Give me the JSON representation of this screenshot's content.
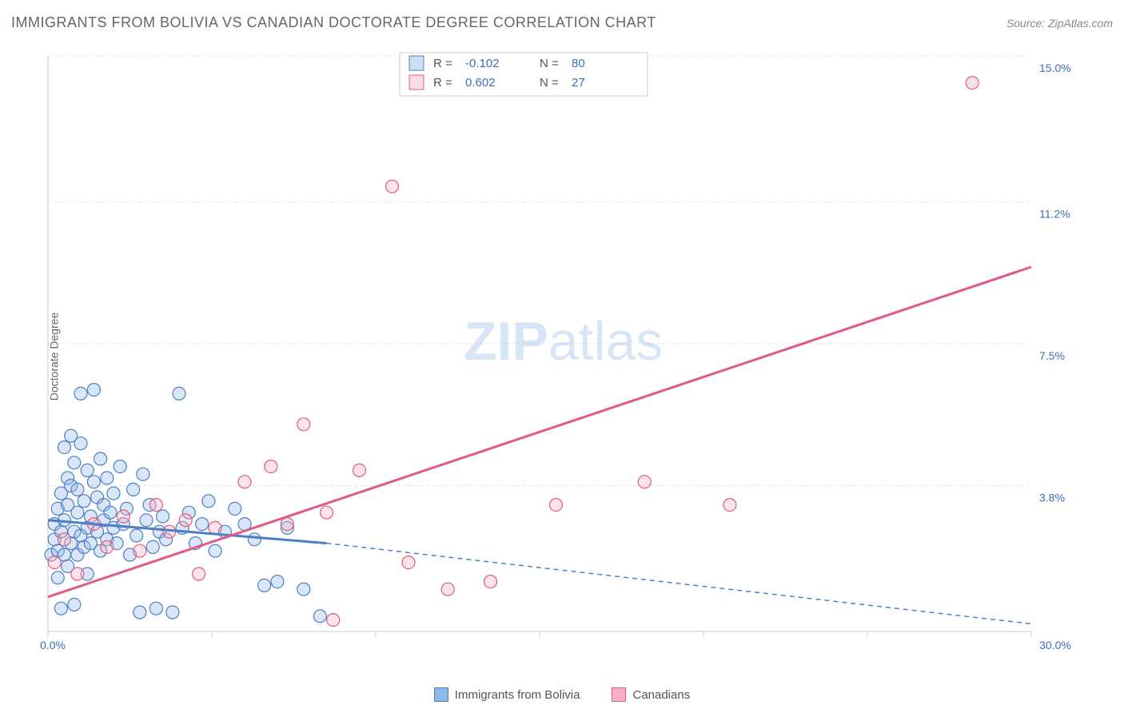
{
  "title": "IMMIGRANTS FROM BOLIVIA VS CANADIAN DOCTORATE DEGREE CORRELATION CHART",
  "source_label": "Source: ZipAtlas.com",
  "y_axis_label": "Doctorate Degree",
  "watermark": {
    "bold": "ZIP",
    "rest": "atlas"
  },
  "chart": {
    "type": "scatter",
    "background_color": "#ffffff",
    "grid_color": "#e0e0e0",
    "axis_color": "#cccccc",
    "tick_label_color": "#3b6fb6",
    "xlim": [
      0,
      30
    ],
    "ylim": [
      0,
      15
    ],
    "y_ticks": [
      3.8,
      7.5,
      11.2,
      15.0
    ],
    "y_tick_labels": [
      "3.8%",
      "7.5%",
      "11.2%",
      "15.0%"
    ],
    "x_min_label": "0.0%",
    "x_max_label": "30.0%",
    "x_tick_positions": [
      0,
      5,
      10,
      15,
      20,
      25,
      30
    ],
    "marker_radius": 8,
    "marker_stroke_width": 1.2,
    "marker_fill_opacity": 0.35,
    "trend_solid_width": 3,
    "trend_dash_width": 1.5,
    "trend_dash_pattern": "6 5"
  },
  "series": {
    "a": {
      "label": "Immigrants from Bolivia",
      "fill": "#8fb8e8",
      "stroke": "#4d7fc7",
      "R": "-0.102",
      "N": "80",
      "trend_solid": {
        "x0": 0.0,
        "y0": 2.9,
        "x1": 8.5,
        "y1": 2.3
      },
      "trend_dash": {
        "x0": 8.5,
        "y0": 2.3,
        "x1": 30.0,
        "y1": 0.2
      },
      "points": [
        [
          0.1,
          2.0
        ],
        [
          0.2,
          2.4
        ],
        [
          0.2,
          2.8
        ],
        [
          0.3,
          1.4
        ],
        [
          0.3,
          2.1
        ],
        [
          0.3,
          3.2
        ],
        [
          0.4,
          0.6
        ],
        [
          0.4,
          2.6
        ],
        [
          0.4,
          3.6
        ],
        [
          0.5,
          4.8
        ],
        [
          0.5,
          2.0
        ],
        [
          0.5,
          2.9
        ],
        [
          0.6,
          4.0
        ],
        [
          0.6,
          3.3
        ],
        [
          0.6,
          1.7
        ],
        [
          0.7,
          2.3
        ],
        [
          0.7,
          3.8
        ],
        [
          0.7,
          5.1
        ],
        [
          0.8,
          2.6
        ],
        [
          0.8,
          0.7
        ],
        [
          0.8,
          4.4
        ],
        [
          0.9,
          3.1
        ],
        [
          0.9,
          2.0
        ],
        [
          0.9,
          3.7
        ],
        [
          1.0,
          2.5
        ],
        [
          1.0,
          6.2
        ],
        [
          1.0,
          4.9
        ],
        [
          1.1,
          2.2
        ],
        [
          1.1,
          3.4
        ],
        [
          1.2,
          2.7
        ],
        [
          1.2,
          1.5
        ],
        [
          1.2,
          4.2
        ],
        [
          1.3,
          3.0
        ],
        [
          1.3,
          2.3
        ],
        [
          1.4,
          6.3
        ],
        [
          1.4,
          3.9
        ],
        [
          1.5,
          2.6
        ],
        [
          1.5,
          3.5
        ],
        [
          1.6,
          2.1
        ],
        [
          1.6,
          4.5
        ],
        [
          1.7,
          2.9
        ],
        [
          1.7,
          3.3
        ],
        [
          1.8,
          2.4
        ],
        [
          1.8,
          4.0
        ],
        [
          1.9,
          3.1
        ],
        [
          2.0,
          2.7
        ],
        [
          2.0,
          3.6
        ],
        [
          2.1,
          2.3
        ],
        [
          2.2,
          4.3
        ],
        [
          2.3,
          2.8
        ],
        [
          2.4,
          3.2
        ],
        [
          2.5,
          2.0
        ],
        [
          2.6,
          3.7
        ],
        [
          2.7,
          2.5
        ],
        [
          2.8,
          0.5
        ],
        [
          2.9,
          4.1
        ],
        [
          3.0,
          2.9
        ],
        [
          3.1,
          3.3
        ],
        [
          3.2,
          2.2
        ],
        [
          3.3,
          0.6
        ],
        [
          3.4,
          2.6
        ],
        [
          3.5,
          3.0
        ],
        [
          3.6,
          2.4
        ],
        [
          3.8,
          0.5
        ],
        [
          4.0,
          6.2
        ],
        [
          4.1,
          2.7
        ],
        [
          4.3,
          3.1
        ],
        [
          4.5,
          2.3
        ],
        [
          4.7,
          2.8
        ],
        [
          4.9,
          3.4
        ],
        [
          5.1,
          2.1
        ],
        [
          5.4,
          2.6
        ],
        [
          5.7,
          3.2
        ],
        [
          6.0,
          2.8
        ],
        [
          6.3,
          2.4
        ],
        [
          6.6,
          1.2
        ],
        [
          7.0,
          1.3
        ],
        [
          7.3,
          2.7
        ],
        [
          7.8,
          1.1
        ],
        [
          8.3,
          0.4
        ]
      ]
    },
    "b": {
      "label": "Canadians",
      "fill": "#f6b0c0",
      "stroke": "#e15a82",
      "R": "0.602",
      "N": "27",
      "trend_solid": {
        "x0": 0.0,
        "y0": 0.9,
        "x1": 30.0,
        "y1": 9.5
      },
      "trend_dash": null,
      "points": [
        [
          0.2,
          1.8
        ],
        [
          0.5,
          2.4
        ],
        [
          0.9,
          1.5
        ],
        [
          1.4,
          2.8
        ],
        [
          1.8,
          2.2
        ],
        [
          2.3,
          3.0
        ],
        [
          2.8,
          2.1
        ],
        [
          3.3,
          3.3
        ],
        [
          3.7,
          2.6
        ],
        [
          4.2,
          2.9
        ],
        [
          4.6,
          1.5
        ],
        [
          5.1,
          2.7
        ],
        [
          6.0,
          3.9
        ],
        [
          6.8,
          4.3
        ],
        [
          7.3,
          2.8
        ],
        [
          7.8,
          5.4
        ],
        [
          8.5,
          3.1
        ],
        [
          8.7,
          0.3
        ],
        [
          9.5,
          4.2
        ],
        [
          10.5,
          11.6
        ],
        [
          11.0,
          1.8
        ],
        [
          12.2,
          1.1
        ],
        [
          15.5,
          3.3
        ],
        [
          18.2,
          3.9
        ],
        [
          20.8,
          3.3
        ],
        [
          28.2,
          14.3
        ],
        [
          13.5,
          1.3
        ]
      ]
    }
  },
  "legend_top": {
    "r_prefix": "R =",
    "n_prefix": "N ="
  },
  "bottom_legend": {
    "a_label": "Immigrants from Bolivia",
    "b_label": "Canadians"
  }
}
